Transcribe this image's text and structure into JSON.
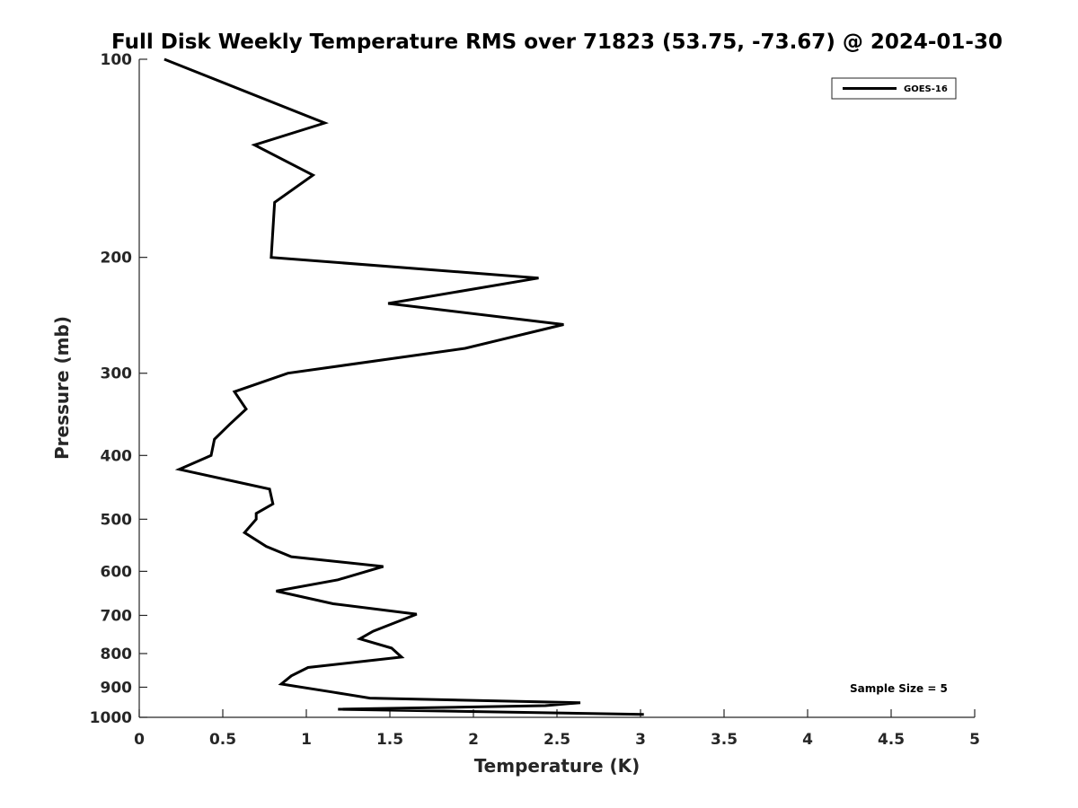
{
  "chart_data": {
    "type": "line",
    "title": "Full Disk Weekly Temperature RMS over 71823 (53.75, -73.67) @ 2024-01-30",
    "xlabel": "Temperature (K)",
    "ylabel": "Pressure (mb)",
    "xlim": [
      0,
      5
    ],
    "ylim": [
      100,
      1000
    ],
    "y_scale": "log",
    "y_reversed": true,
    "x_ticks": [
      "0",
      "0.5",
      "1",
      "1.5",
      "2",
      "2.5",
      "3",
      "3.5",
      "4",
      "4.5",
      "5"
    ],
    "y_ticks": [
      "100",
      "200",
      "300",
      "400",
      "500",
      "600",
      "700",
      "800",
      "900",
      "1000"
    ],
    "grid": false,
    "legend_position": "top-right",
    "annotation": "Sample Size = 5",
    "series": [
      {
        "name": "GOES-16",
        "color": "#000000",
        "points": [
          [
            0.15,
            100
          ],
          [
            1.11,
            125
          ],
          [
            0.69,
            135
          ],
          [
            1.04,
            150
          ],
          [
            0.81,
            165
          ],
          [
            0.79,
            200
          ],
          [
            2.39,
            215
          ],
          [
            1.49,
            235
          ],
          [
            2.54,
            253
          ],
          [
            1.95,
            275
          ],
          [
            0.89,
            300
          ],
          [
            0.57,
            320
          ],
          [
            0.64,
            340
          ],
          [
            0.54,
            359
          ],
          [
            0.45,
            378
          ],
          [
            0.43,
            400
          ],
          [
            0.24,
            420
          ],
          [
            0.78,
            450
          ],
          [
            0.8,
            474
          ],
          [
            0.7,
            490
          ],
          [
            0.7,
            500
          ],
          [
            0.63,
            524
          ],
          [
            0.76,
            550
          ],
          [
            0.91,
            570
          ],
          [
            1.46,
            590
          ],
          [
            1.19,
            618
          ],
          [
            0.82,
            643
          ],
          [
            1.16,
            672
          ],
          [
            1.66,
            697
          ],
          [
            1.52,
            720
          ],
          [
            1.4,
            740
          ],
          [
            1.32,
            760
          ],
          [
            1.51,
            785
          ],
          [
            1.57,
            810
          ],
          [
            1.01,
            840
          ],
          [
            0.91,
            865
          ],
          [
            0.85,
            890
          ],
          [
            1.15,
            915
          ],
          [
            1.38,
            935
          ],
          [
            2.64,
            950
          ],
          [
            2.43,
            960
          ],
          [
            1.19,
            972
          ],
          [
            3.02,
            990
          ]
        ]
      }
    ]
  }
}
